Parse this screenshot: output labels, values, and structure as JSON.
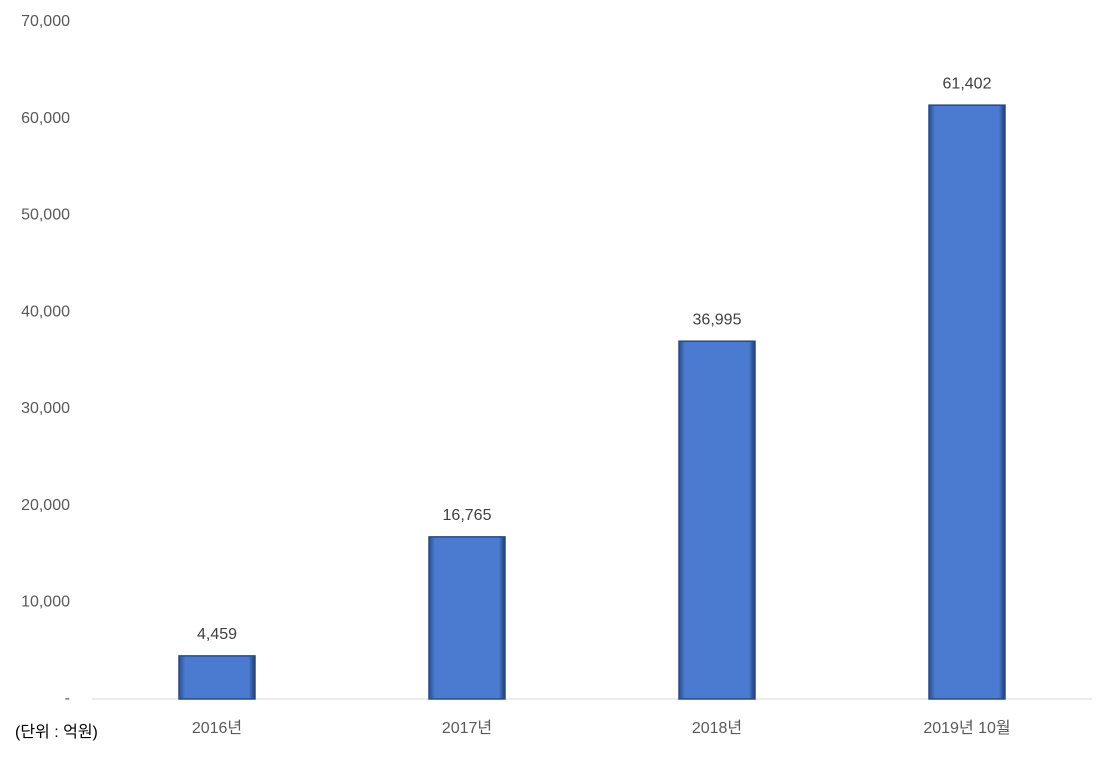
{
  "chart_data": {
    "type": "bar",
    "categories": [
      "2016년",
      "2017년",
      "2018년",
      "2019년 10월"
    ],
    "values": [
      4459,
      16765,
      36995,
      61402
    ],
    "value_labels": [
      "4,459",
      "16,765",
      "36,995",
      "61,402"
    ],
    "color": "#4a7bd1",
    "ylim": [
      0,
      70000
    ],
    "yticks": [
      {
        "value": 0,
        "label": "-"
      },
      {
        "value": 10000,
        "label": "10,000"
      },
      {
        "value": 20000,
        "label": "20,000"
      },
      {
        "value": 30000,
        "label": "30,000"
      },
      {
        "value": 40000,
        "label": "40,000"
      },
      {
        "value": 50000,
        "label": "50,000"
      },
      {
        "value": 60000,
        "label": "60,000"
      },
      {
        "value": 70000,
        "label": "70,000"
      }
    ],
    "grid": false,
    "unit_note": "(단위 : 억원)"
  }
}
